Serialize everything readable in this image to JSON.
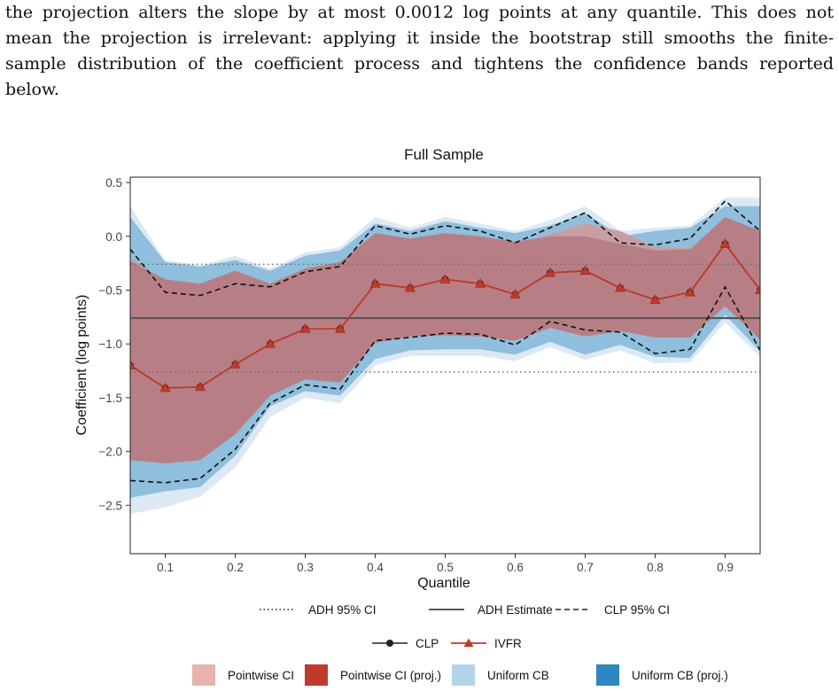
{
  "paragraph": {
    "lines": [
      "the projection alters the slope by at most 0.0012 log points at any quantile. This does not",
      "mean the projection is irrelevant: applying it inside the bootstrap still smooths the finite-",
      "sample distribution of the coefficient process and tightens the confidence bands reported",
      "below."
    ]
  },
  "chart_data": {
    "type": "line",
    "title": "Full Sample",
    "xlabel": "Quantile",
    "ylabel": "Coefficient (log points)",
    "xlim": [
      0.05,
      0.95
    ],
    "ylim": [
      -2.95,
      0.55
    ],
    "x_ticks": [
      0.1,
      0.2,
      0.3,
      0.4,
      0.5,
      0.6,
      0.7,
      0.8,
      0.9
    ],
    "x_tick_labels": [
      "0.1",
      "0.2",
      "0.3",
      "0.4",
      "0.5",
      "0.6",
      "0.7",
      "0.8",
      "0.9"
    ],
    "y_ticks": [
      0.5,
      0.0,
      -0.5,
      -1.0,
      -1.5,
      -2.0,
      -2.5
    ],
    "y_tick_labels": [
      "0.5",
      "0.0",
      "−0.5",
      "−1.0",
      "−1.5",
      "−2.0",
      "−2.5"
    ],
    "grid": false,
    "x": [
      0.05,
      0.1,
      0.15,
      0.2,
      0.25,
      0.3,
      0.35,
      0.4,
      0.45,
      0.5,
      0.55,
      0.6,
      0.65,
      0.7,
      0.75,
      0.8,
      0.85,
      0.9,
      0.95
    ],
    "series": [
      {
        "name": "CLP",
        "values": [
          -1.2,
          -1.41,
          -1.4,
          -1.19,
          -1.0,
          -0.86,
          -0.86,
          -0.44,
          -0.48,
          -0.4,
          -0.44,
          -0.54,
          -0.34,
          -0.32,
          -0.48,
          -0.59,
          -0.52,
          -0.07,
          -0.5
        ]
      },
      {
        "name": "IVFR",
        "values": [
          -1.2,
          -1.41,
          -1.4,
          -1.19,
          -1.0,
          -0.86,
          -0.86,
          -0.44,
          -0.48,
          -0.4,
          -0.44,
          -0.54,
          -0.34,
          -0.32,
          -0.48,
          -0.59,
          -0.52,
          -0.07,
          -0.5
        ]
      },
      {
        "name": "CLP 95% CI upper",
        "values": [
          -0.12,
          -0.52,
          -0.55,
          -0.44,
          -0.47,
          -0.33,
          -0.28,
          0.1,
          0.02,
          0.1,
          0.05,
          -0.06,
          0.08,
          0.22,
          -0.06,
          -0.08,
          -0.02,
          0.33,
          0.05
        ]
      },
      {
        "name": "CLP 95% CI lower",
        "values": [
          -2.27,
          -2.29,
          -2.25,
          -1.98,
          -1.55,
          -1.38,
          -1.42,
          -0.97,
          -0.94,
          -0.9,
          -0.91,
          -1.01,
          -0.79,
          -0.87,
          -0.89,
          -1.09,
          -1.05,
          -0.47,
          -1.06
        ]
      }
    ],
    "bands": {
      "uniform_cb": {
        "upper": [
          0.28,
          -0.22,
          -0.27,
          -0.18,
          -0.3,
          -0.15,
          -0.1,
          0.18,
          0.08,
          0.18,
          0.12,
          0.05,
          0.15,
          0.28,
          0.05,
          0.08,
          0.1,
          0.36,
          0.36
        ],
        "lower": [
          -2.58,
          -2.52,
          -2.42,
          -2.15,
          -1.68,
          -1.5,
          -1.55,
          -1.2,
          -1.11,
          -1.11,
          -1.11,
          -1.16,
          -1.03,
          -1.15,
          -1.06,
          -1.18,
          -1.17,
          -0.8,
          -1.12
        ]
      },
      "uniform_cb_proj": {
        "upper": [
          0.18,
          -0.24,
          -0.28,
          -0.22,
          -0.32,
          -0.18,
          -0.13,
          0.12,
          0.05,
          0.14,
          0.08,
          0.03,
          0.1,
          0.22,
          0.0,
          0.05,
          0.08,
          0.28,
          0.28
        ],
        "lower": [
          -2.43,
          -2.37,
          -2.33,
          -2.04,
          -1.58,
          -1.44,
          -1.48,
          -1.14,
          -1.06,
          -1.05,
          -1.05,
          -1.1,
          -0.98,
          -1.1,
          -1.01,
          -1.12,
          -1.13,
          -0.73,
          -1.07
        ]
      },
      "pointwise_ci": {
        "upper": [
          -0.2,
          -0.43,
          -0.47,
          -0.37,
          -0.46,
          -0.32,
          -0.26,
          0.0,
          -0.04,
          0.0,
          -0.03,
          -0.08,
          0.02,
          0.12,
          0.05,
          -0.1,
          -0.11,
          0.15,
          0.06
        ]
      },
      "pointwise_ci_proj": {
        "upper": [
          -0.23,
          -0.4,
          -0.44,
          -0.32,
          -0.44,
          -0.3,
          -0.24,
          0.03,
          -0.02,
          0.03,
          0.0,
          -0.05,
          0.0,
          0.0,
          -0.07,
          -0.13,
          -0.12,
          0.18,
          0.05
        ],
        "lower": [
          -2.08,
          -2.11,
          -2.08,
          -1.84,
          -1.48,
          -1.33,
          -1.36,
          -0.99,
          -0.93,
          -0.92,
          -0.93,
          -0.97,
          -0.85,
          -0.93,
          -0.88,
          -0.94,
          -0.94,
          -0.65,
          -0.96
        ]
      }
    },
    "reference_lines": [
      {
        "name": "ADH Estimate",
        "y": -0.76,
        "style": "solid"
      },
      {
        "name": "ADH 95% CI",
        "y": -0.26,
        "style": "dotted"
      },
      {
        "name": "ADH 95% CI",
        "y": -1.26,
        "style": "dotted"
      }
    ],
    "legend": {
      "placement": "bottom",
      "row1": [
        {
          "label": "ADH 95% CI",
          "style": "dotted"
        },
        {
          "label": "ADH Estimate",
          "style": "solid"
        },
        {
          "label": "CLP 95% CI",
          "style": "dashed"
        }
      ],
      "row2": [
        {
          "label": "CLP",
          "marker": "circle"
        },
        {
          "label": "IVFR",
          "marker": "triangle"
        }
      ],
      "row3": [
        {
          "label": "Pointwise CI",
          "color": "#e8b2b0"
        },
        {
          "label": "Pointwise CI (proj.)",
          "color": "#c0392b"
        },
        {
          "label": "Uniform CB",
          "color": "#b3d5ea"
        },
        {
          "label": "Uniform CB (proj.)",
          "color": "#2e86c1"
        }
      ]
    },
    "colors": {
      "uniform_cb": "#dce9f5",
      "uniform_cb_proj": "#8fbfdc",
      "pointwise_ci": "#c99ea3",
      "pointwise_ci_proj": "#b77f85",
      "ivfr": "#c0392b",
      "reference": "#555555"
    }
  }
}
